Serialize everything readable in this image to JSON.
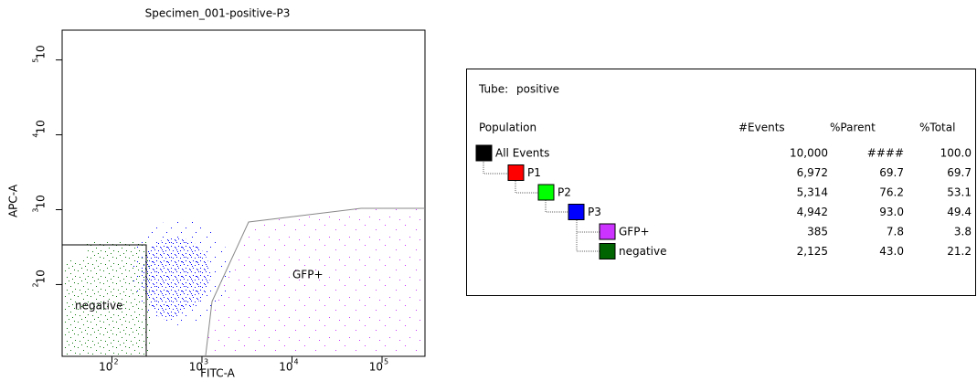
{
  "plot": {
    "title": "Specimen_001-positive-P3",
    "x_label": "FITC-A",
    "y_label": "APC-A",
    "x_scale": "log",
    "y_scale": "log",
    "xlim": [
      28,
      300000
    ],
    "ylim": [
      11,
      250000
    ],
    "xticks": [
      {
        "value": 100,
        "label": "10",
        "exponent": "2"
      },
      {
        "value": 1000,
        "label": "10",
        "exponent": "3"
      },
      {
        "value": 10000,
        "label": "10",
        "exponent": "4"
      },
      {
        "value": 100000,
        "label": "10",
        "exponent": "5"
      }
    ],
    "yticks": [
      {
        "value": 100,
        "label": "10",
        "exponent": "2"
      },
      {
        "value": 1000,
        "label": "10",
        "exponent": "3"
      },
      {
        "value": 10000,
        "label": "10",
        "exponent": "4"
      },
      {
        "value": 100000,
        "label": "10",
        "exponent": "5"
      }
    ],
    "gates": [
      "negative",
      "GFP+"
    ]
  },
  "table": {
    "tube_label": "Tube:",
    "tube": "positive",
    "headers": [
      "Population",
      "#Events",
      "%Parent",
      "%Total"
    ],
    "rows": [
      {
        "name": "All Events",
        "color": "#000000",
        "events": "10,000",
        "parent": "####",
        "total": "100.0"
      },
      {
        "name": "P1",
        "color": "#ff0000",
        "events": "6,972",
        "parent": "69.7",
        "total": "69.7"
      },
      {
        "name": "P2",
        "color": "#00ff00",
        "events": "5,314",
        "parent": "76.2",
        "total": "53.1"
      },
      {
        "name": "P3",
        "color": "#0000ff",
        "events": "4,942",
        "parent": "93.0",
        "total": "49.4"
      },
      {
        "name": "GFP+",
        "color": "#cc33ff",
        "events": "385",
        "parent": "7.8",
        "total": "3.8"
      },
      {
        "name": "negative",
        "color": "#006400",
        "events": "2,125",
        "parent": "43.0",
        "total": "21.2"
      }
    ]
  }
}
